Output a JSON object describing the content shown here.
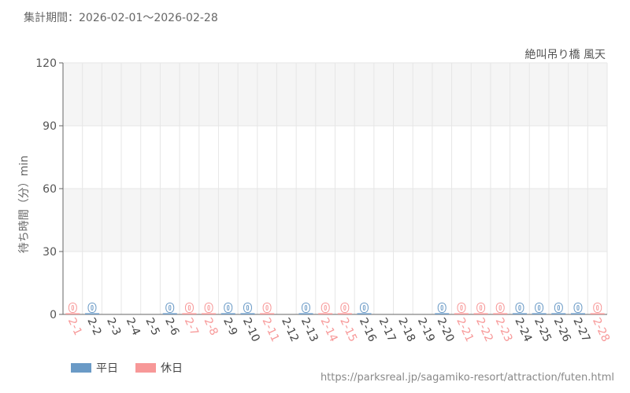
{
  "period_label": "集計期間：2026-02-01〜2026-02-28",
  "source_url": "https://parksreal.jp/sagamiko-resort/attraction/futen.html",
  "colors": {
    "weekday": "#6a9ac6",
    "holiday": "#f79898",
    "grid": "#e6e6e6",
    "band": "#f5f5f5",
    "axis": "#666666"
  },
  "chart_data": {
    "type": "bar",
    "title": "絶叫吊り橋 風天",
    "ylabel": "待ち時間（分）min",
    "ylim": [
      0,
      120
    ],
    "yticks": [
      0,
      30,
      60,
      90,
      120
    ],
    "categories": [
      "2-1",
      "2-2",
      "2-3",
      "2-4",
      "2-5",
      "2-6",
      "2-7",
      "2-8",
      "2-9",
      "2-10",
      "2-11",
      "2-12",
      "2-13",
      "2-14",
      "2-15",
      "2-16",
      "2-17",
      "2-18",
      "2-19",
      "2-20",
      "2-21",
      "2-22",
      "2-23",
      "2-24",
      "2-25",
      "2-26",
      "2-27",
      "2-28"
    ],
    "day_type": [
      "holiday",
      "weekday",
      "weekday",
      "weekday",
      "weekday",
      "weekday",
      "holiday",
      "holiday",
      "weekday",
      "weekday",
      "holiday",
      "weekday",
      "weekday",
      "holiday",
      "holiday",
      "weekday",
      "weekday",
      "weekday",
      "weekday",
      "weekday",
      "holiday",
      "holiday",
      "holiday",
      "weekday",
      "weekday",
      "weekday",
      "weekday",
      "holiday"
    ],
    "values": [
      0,
      0,
      null,
      null,
      null,
      0,
      0,
      0,
      0,
      0,
      0,
      null,
      0,
      0,
      0,
      0,
      null,
      null,
      null,
      0,
      0,
      0,
      0,
      0,
      0,
      0,
      0,
      0
    ],
    "legend": [
      {
        "key": "weekday",
        "label": "平日"
      },
      {
        "key": "holiday",
        "label": "休日"
      }
    ],
    "legend_position": "bottom-left",
    "grid": true
  }
}
